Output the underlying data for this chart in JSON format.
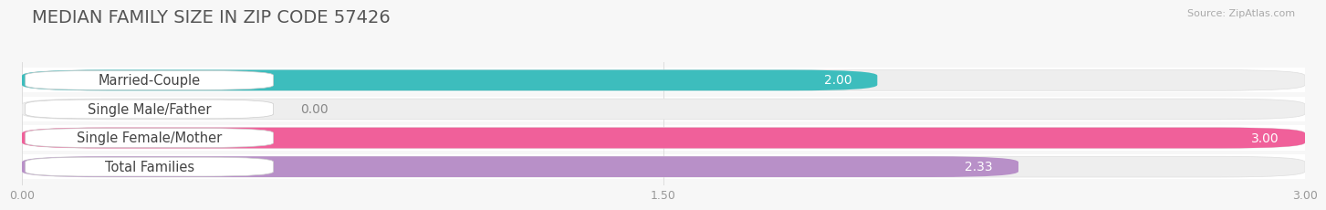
{
  "title": "MEDIAN FAMILY SIZE IN ZIP CODE 57426",
  "source": "Source: ZipAtlas.com",
  "categories": [
    "Married-Couple",
    "Single Male/Father",
    "Single Female/Mother",
    "Total Families"
  ],
  "values": [
    2.0,
    0.0,
    3.0,
    2.33
  ],
  "value_labels": [
    "2.00",
    "0.00",
    "3.00",
    "2.33"
  ],
  "bar_colors": [
    "#3DBDBD",
    "#9BB8D8",
    "#F0609A",
    "#B890C8"
  ],
  "bar_track_color": "#EEEEEE",
  "xlim": [
    0.0,
    3.0
  ],
  "xticks": [
    0.0,
    1.5,
    3.0
  ],
  "xtick_labels": [
    "0.00",
    "1.50",
    "3.00"
  ],
  "background_color": "#F7F7F7",
  "row_bg_color": "#FFFFFF",
  "title_fontsize": 14,
  "label_fontsize": 10.5,
  "value_fontsize": 10
}
